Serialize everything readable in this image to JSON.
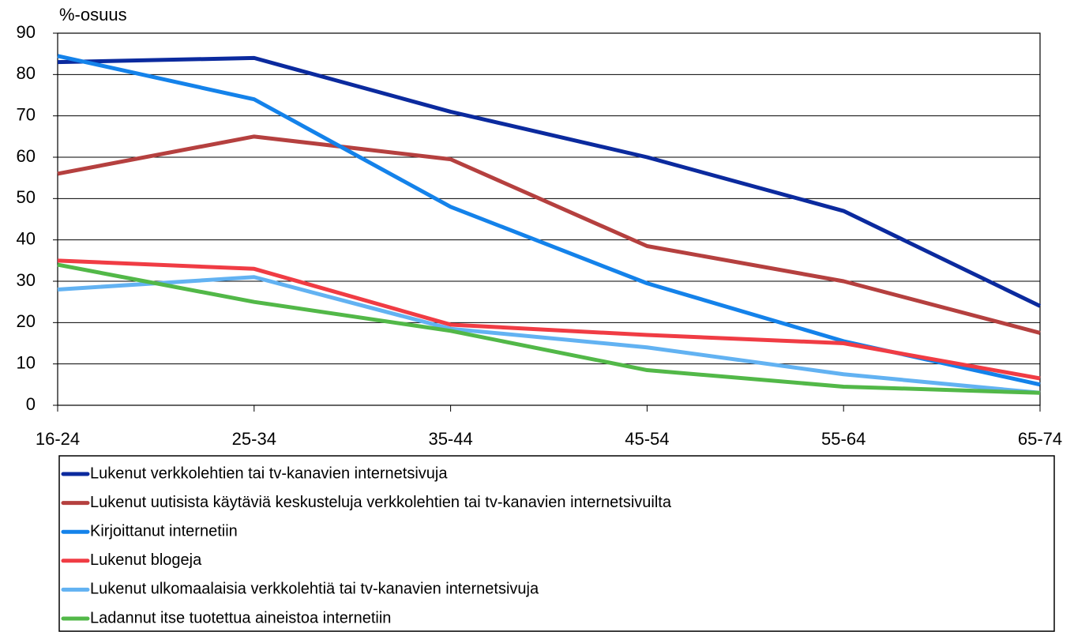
{
  "chart_data": {
    "type": "line",
    "y_label": "%-osuus",
    "categories": [
      "16-24",
      "25-34",
      "35-44",
      "45-54",
      "55-64",
      "65-74"
    ],
    "series": [
      {
        "name": "Lukenut verkkolehtien tai tv-kanavien internetsivuja",
        "color": "#0b2a9e",
        "values": [
          83,
          84,
          71,
          60,
          47,
          24
        ]
      },
      {
        "name": "Lukenut uutisista käytäviä keskusteluja verkkolehtien tai tv-kanavien internetsivuilta",
        "color": "#b5403f",
        "values": [
          56,
          65,
          59.5,
          38.5,
          30,
          17.5
        ]
      },
      {
        "name": "Kirjoittanut internetiin",
        "color": "#1482ea",
        "values": [
          84.5,
          74,
          48,
          29.5,
          15.5,
          5
        ]
      },
      {
        "name": "Lukenut blogeja",
        "color": "#f03c44",
        "values": [
          35,
          33,
          19.5,
          17,
          15,
          6.5
        ]
      },
      {
        "name": "Lukenut ulkomaalaisia verkkolehtiä tai tv-kanavien internetsivuja",
        "color": "#62b2f2",
        "values": [
          28,
          31,
          18.5,
          14,
          7.5,
          3
        ]
      },
      {
        "name": "Ladannut itse tuotettua aineistoa internetiin",
        "color": "#52b848",
        "values": [
          34,
          25,
          18,
          8.5,
          4.5,
          3
        ]
      }
    ],
    "ylim": [
      0,
      90
    ],
    "yticks": [
      0,
      10,
      20,
      30,
      40,
      50,
      60,
      70,
      80,
      90
    ],
    "grid": true
  }
}
